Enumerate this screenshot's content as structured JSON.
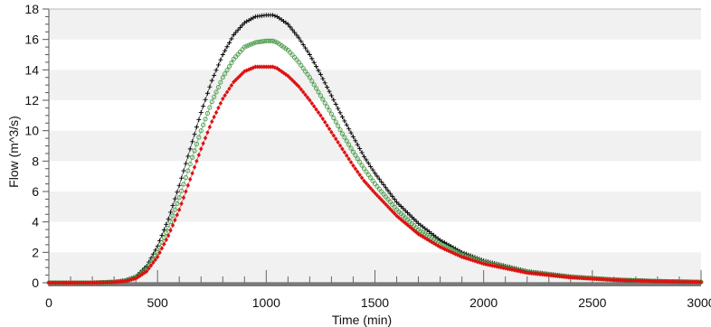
{
  "chart_data": {
    "type": "scatter",
    "title": "",
    "xlabel": "Time (min)",
    "ylabel": "Flow (m^3/s)",
    "xlim": [
      0,
      3000
    ],
    "ylim": [
      0,
      18
    ],
    "x_ticks": [
      0,
      500,
      1000,
      1500,
      2000,
      2500,
      3000
    ],
    "x_tick_labels": [
      "0",
      "500",
      "1000",
      "1500",
      "2000",
      "2500",
      "3000"
    ],
    "y_ticks": [
      0,
      2,
      4,
      6,
      8,
      10,
      12,
      14,
      16,
      18
    ],
    "y_tick_labels": [
      "0",
      "2",
      "4",
      "6",
      "8",
      "10",
      "12",
      "14",
      "16",
      "18"
    ],
    "grid": "horizontal alternating bands",
    "legend": "none",
    "x": [
      0,
      100,
      200,
      300,
      350,
      400,
      450,
      500,
      550,
      600,
      650,
      700,
      750,
      800,
      850,
      900,
      950,
      1000,
      1030,
      1050,
      1100,
      1150,
      1200,
      1250,
      1300,
      1350,
      1400,
      1450,
      1500,
      1600,
      1700,
      1800,
      1900,
      2000,
      2200,
      2400,
      2600,
      2800,
      3000
    ],
    "series": [
      {
        "marker": "cross",
        "color": "#000000",
        "values": [
          0,
          0,
          0,
          0.05,
          0.15,
          0.4,
          1.1,
          2.4,
          4.2,
          6.4,
          8.8,
          11.2,
          13.3,
          15.0,
          16.3,
          17.1,
          17.5,
          17.6,
          17.6,
          17.5,
          17.0,
          16.1,
          15.0,
          13.7,
          12.3,
          10.9,
          9.6,
          8.3,
          7.2,
          5.3,
          3.9,
          2.8,
          2.0,
          1.45,
          0.75,
          0.4,
          0.2,
          0.1,
          0.05
        ]
      },
      {
        "marker": "circle",
        "color": "#4a9a4a",
        "values": [
          0,
          0,
          0,
          0.05,
          0.12,
          0.35,
          0.9,
          2.0,
          3.6,
          5.6,
          7.8,
          10.0,
          11.9,
          13.5,
          14.7,
          15.5,
          15.8,
          15.9,
          15.9,
          15.8,
          15.3,
          14.5,
          13.5,
          12.3,
          11.1,
          9.8,
          8.6,
          7.5,
          6.5,
          4.8,
          3.5,
          2.55,
          1.85,
          1.35,
          0.7,
          0.38,
          0.2,
          0.1,
          0.05
        ]
      },
      {
        "marker": "diamond",
        "color": "#dd1111",
        "values": [
          0,
          0,
          0,
          0.04,
          0.1,
          0.28,
          0.75,
          1.7,
          3.1,
          4.8,
          6.8,
          8.8,
          10.6,
          12.1,
          13.2,
          13.9,
          14.2,
          14.2,
          14.2,
          14.1,
          13.6,
          12.9,
          12.0,
          11.0,
          9.9,
          8.8,
          7.7,
          6.7,
          5.9,
          4.4,
          3.2,
          2.35,
          1.7,
          1.25,
          0.65,
          0.35,
          0.18,
          0.09,
          0.04
        ]
      }
    ]
  }
}
